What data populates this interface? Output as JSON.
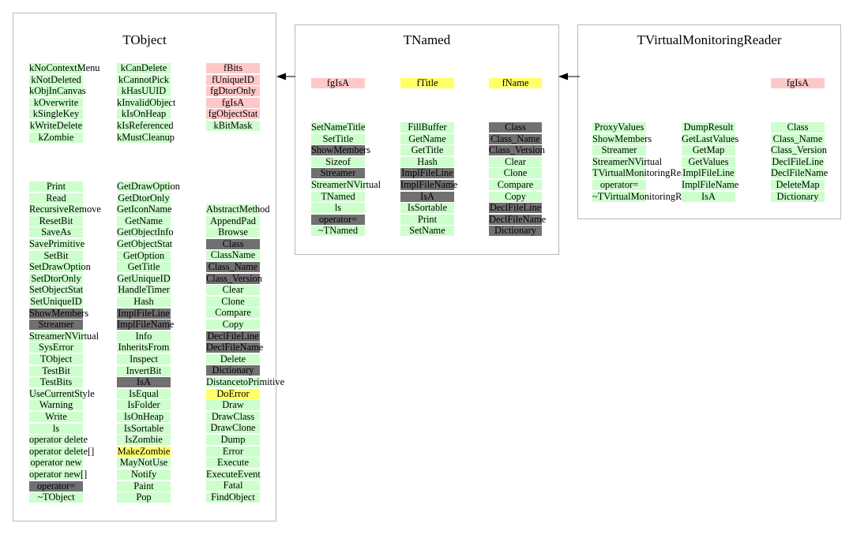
{
  "classes": [
    {
      "title": "TObject",
      "columns": [
        [
          [
            "kNoContextMenu",
            "g"
          ],
          [
            "kNotDeleted",
            "g"
          ],
          [
            "kObjInCanvas",
            "g"
          ],
          [
            "kOverwrite",
            "g"
          ],
          [
            "kSingleKey",
            "g"
          ],
          [
            "kWriteDelete",
            "g"
          ],
          [
            "kZombie",
            "g"
          ],
          [
            "Print",
            "g"
          ],
          [
            "Read",
            "g"
          ],
          [
            "RecursiveRemove",
            "g"
          ],
          [
            "ResetBit",
            "g"
          ],
          [
            "SaveAs",
            "g"
          ],
          [
            "SavePrimitive",
            "g"
          ],
          [
            "SetBit",
            "g"
          ],
          [
            "SetDrawOption",
            "g"
          ],
          [
            "SetDtorOnly",
            "g"
          ],
          [
            "SetObjectStat",
            "g"
          ],
          [
            "SetUniqueID",
            "g"
          ],
          [
            "ShowMembers",
            "d"
          ],
          [
            "Streamer",
            "d"
          ],
          [
            "StreamerNVirtual",
            "g"
          ],
          [
            "SysError",
            "g"
          ],
          [
            "TObject",
            "g"
          ],
          [
            "TestBit",
            "g"
          ],
          [
            "TestBits",
            "g"
          ],
          [
            "UseCurrentStyle",
            "g"
          ],
          [
            "Warning",
            "g"
          ],
          [
            "Write",
            "g"
          ],
          [
            "ls",
            "g"
          ],
          [
            "operator delete",
            "g"
          ],
          [
            "operator delete[]",
            "g"
          ],
          [
            "operator new",
            "g"
          ],
          [
            "operator new[]",
            "g"
          ],
          [
            "operator=",
            "d"
          ],
          [
            "~TObject",
            "g"
          ]
        ],
        [
          [
            "kCanDelete",
            "g"
          ],
          [
            "kCannotPick",
            "g"
          ],
          [
            "kHasUUID",
            "g"
          ],
          [
            "kInvalidObject",
            "g"
          ],
          [
            "kIsOnHeap",
            "g"
          ],
          [
            "kIsReferenced",
            "g"
          ],
          [
            "kMustCleanup",
            "g"
          ],
          [
            "GetDrawOption",
            "g"
          ],
          [
            "GetDtorOnly",
            "g"
          ],
          [
            "GetIconName",
            "g"
          ],
          [
            "GetName",
            "g"
          ],
          [
            "GetObjectInfo",
            "g"
          ],
          [
            "GetObjectStat",
            "g"
          ],
          [
            "GetOption",
            "g"
          ],
          [
            "GetTitle",
            "g"
          ],
          [
            "GetUniqueID",
            "g"
          ],
          [
            "HandleTimer",
            "g"
          ],
          [
            "Hash",
            "g"
          ],
          [
            "ImplFileLine",
            "d"
          ],
          [
            "ImplFileName",
            "d"
          ],
          [
            "Info",
            "g"
          ],
          [
            "InheritsFrom",
            "g"
          ],
          [
            "Inspect",
            "g"
          ],
          [
            "InvertBit",
            "g"
          ],
          [
            "IsA",
            "d"
          ],
          [
            "IsEqual",
            "g"
          ],
          [
            "IsFolder",
            "g"
          ],
          [
            "IsOnHeap",
            "g"
          ],
          [
            "IsSortable",
            "g"
          ],
          [
            "IsZombie",
            "g"
          ],
          [
            "MakeZombie",
            "y"
          ],
          [
            "MayNotUse",
            "g"
          ],
          [
            "Notify",
            "g"
          ],
          [
            "Paint",
            "g"
          ],
          [
            "Pop",
            "g"
          ]
        ],
        [
          [
            "fBits",
            "p"
          ],
          [
            "fUniqueID",
            "p"
          ],
          [
            "fgDtorOnly",
            "p"
          ],
          [
            "fgIsA",
            "p"
          ],
          [
            "fgObjectStat",
            "p"
          ],
          [
            "kBitMask",
            "g"
          ],
          [
            "AbstractMethod",
            "g"
          ],
          [
            "AppendPad",
            "g"
          ],
          [
            "Browse",
            "g"
          ],
          [
            "Class",
            "d"
          ],
          [
            "ClassName",
            "g"
          ],
          [
            "Class_Name",
            "d"
          ],
          [
            "Class_Version",
            "d"
          ],
          [
            "Clear",
            "g"
          ],
          [
            "Clone",
            "g"
          ],
          [
            "Compare",
            "g"
          ],
          [
            "Copy",
            "g"
          ],
          [
            "DeclFileLine",
            "d"
          ],
          [
            "DeclFileName",
            "d"
          ],
          [
            "Delete",
            "g"
          ],
          [
            "Dictionary",
            "d"
          ],
          [
            "DistancetoPrimitive",
            "g"
          ],
          [
            "DoError",
            "y"
          ],
          [
            "Draw",
            "g"
          ],
          [
            "DrawClass",
            "g"
          ],
          [
            "DrawClone",
            "g"
          ],
          [
            "Dump",
            "g"
          ],
          [
            "Error",
            "g"
          ],
          [
            "Execute",
            "g"
          ],
          [
            "ExecuteEvent",
            "g"
          ],
          [
            "Fatal",
            "g"
          ],
          [
            "FindObject",
            "g"
          ]
        ]
      ]
    },
    {
      "title": "TNamed",
      "columns": [
        [
          [
            "fgIsA",
            "p"
          ],
          [
            "SetNameTitle",
            "g"
          ],
          [
            "SetTitle",
            "g"
          ],
          [
            "ShowMembers",
            "d"
          ],
          [
            "Sizeof",
            "g"
          ],
          [
            "Streamer",
            "d"
          ],
          [
            "StreamerNVirtual",
            "g"
          ],
          [
            "TNamed",
            "g"
          ],
          [
            "ls",
            "g"
          ],
          [
            "operator=",
            "d"
          ],
          [
            "~TNamed",
            "g"
          ]
        ],
        [
          [
            "fTitle",
            "y"
          ],
          [
            "FillBuffer",
            "g"
          ],
          [
            "GetName",
            "g"
          ],
          [
            "GetTitle",
            "g"
          ],
          [
            "Hash",
            "g"
          ],
          [
            "ImplFileLine",
            "d"
          ],
          [
            "ImplFileName",
            "d"
          ],
          [
            "IsA",
            "d"
          ],
          [
            "IsSortable",
            "g"
          ],
          [
            "Print",
            "g"
          ],
          [
            "SetName",
            "g"
          ]
        ],
        [
          [
            "fName",
            "y"
          ],
          [
            "Class",
            "d"
          ],
          [
            "Class_Name",
            "d"
          ],
          [
            "Class_Version",
            "d"
          ],
          [
            "Clear",
            "g"
          ],
          [
            "Clone",
            "g"
          ],
          [
            "Compare",
            "g"
          ],
          [
            "Copy",
            "g"
          ],
          [
            "DeclFileLine",
            "d"
          ],
          [
            "DeclFileName",
            "d"
          ],
          [
            "Dictionary",
            "d"
          ]
        ]
      ]
    },
    {
      "title": "TVirtualMonitoringReader",
      "columns": [
        [
          [
            "ProxyValues",
            "g"
          ],
          [
            "ShowMembers",
            "g"
          ],
          [
            "Streamer",
            "g"
          ],
          [
            "StreamerNVirtual",
            "g"
          ],
          [
            "TVirtualMonitoringReader",
            "g"
          ],
          [
            "operator=",
            "g"
          ],
          [
            "~TVirtualMonitoringReader",
            "g"
          ]
        ],
        [
          [
            "DumpResult",
            "g"
          ],
          [
            "GetLastValues",
            "g"
          ],
          [
            "GetMap",
            "g"
          ],
          [
            "GetValues",
            "g"
          ],
          [
            "ImplFileLine",
            "g"
          ],
          [
            "ImplFileName",
            "g"
          ],
          [
            "IsA",
            "g"
          ]
        ],
        [
          [
            "fgIsA",
            "p"
          ],
          [
            "Class",
            "g"
          ],
          [
            "Class_Name",
            "g"
          ],
          [
            "Class_Version",
            "g"
          ],
          [
            "DeclFileLine",
            "g"
          ],
          [
            "DeclFileName",
            "g"
          ],
          [
            "DeleteMap",
            "g"
          ],
          [
            "Dictionary",
            "g"
          ]
        ]
      ]
    }
  ],
  "colors": {
    "g": "#ccffcc",
    "p": "#ffc8c8",
    "y": "#ffff66",
    "d": "#707070",
    "border": "#b8b8b8",
    "arrow": "#000000"
  }
}
